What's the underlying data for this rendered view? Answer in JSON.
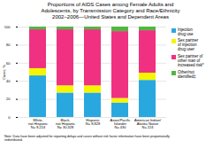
{
  "chart_data": {
    "type": "bar",
    "stacked": true,
    "title": "Proportions of AIDS Cases among Female Adults and\nAdolescents, by Transmission Category and Race/Ethnicity\n2002–2006—United States and Dependent Areas",
    "categories": [
      "White,\nnot Hispanic\nN= 8,224",
      "Black,\nnot Hispanic\nN= 30,328",
      "Hispanic\nN= 8,828",
      "Asian/Pacific\nIslander\nN= 430",
      "American Indian/\nAlaska Native\nN= 224"
    ],
    "series": [
      {
        "name": "Injection\ndrug use",
        "color": "#29a8e0",
        "values": [
          46,
          27,
          27,
          16,
          41
        ]
      },
      {
        "name": "Sex partner\nof injection\ndrug user",
        "color": "#f5f500",
        "values": [
          8,
          8,
          8,
          5,
          8
        ]
      },
      {
        "name": "Sex partner of\nother man of\nincreased risk*",
        "color": "#f03080",
        "values": [
          43,
          62,
          62,
          74,
          47
        ]
      },
      {
        "name": "Other/not\nidentified‡",
        "color": "#50b840",
        "values": [
          3,
          3,
          3,
          5,
          4
        ]
      }
    ],
    "ylabel": "Cases, %",
    "ylim": [
      0,
      100
    ],
    "yticks": [
      0,
      20,
      40,
      60,
      80,
      100
    ],
    "grid": true,
    "legend": "right",
    "annotations": [
      "Note: Data have been adjusted for reporting delays and cases without risk factor information have been proportionally\nredistributed."
    ]
  }
}
